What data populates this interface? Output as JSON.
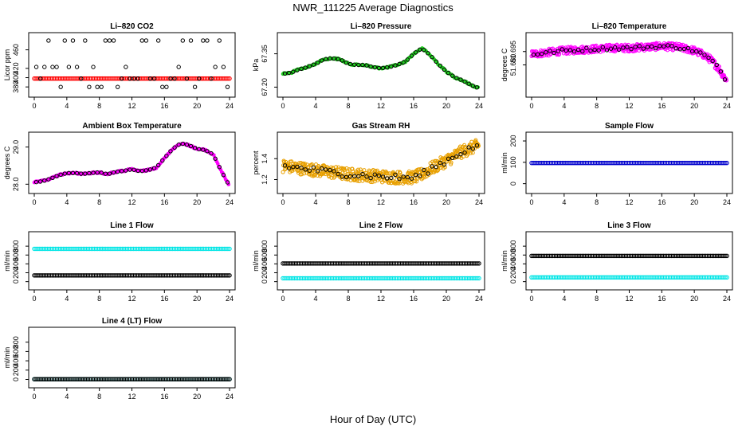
{
  "chart_data": {
    "type": "scatter",
    "title": "NWR_111225  Average Diagnostics",
    "xlabel": "Hour of Day (UTC)",
    "xlim": [
      0,
      24
    ],
    "xticks": [
      "0",
      "4",
      "8",
      "12",
      "16",
      "20",
      "24"
    ],
    "colors": {
      "red": "#ff0000",
      "green": "#22cc22",
      "magenta": "#ff00ff",
      "orange": "#e8a000",
      "blue": "#0000cc",
      "cyan": "#00e5e5",
      "black": "#000000"
    },
    "panels": [
      {
        "title": "Li–820 CO2",
        "ylabel": "Licor ppm",
        "ylim": [
          370,
          485
        ],
        "yticks": [
          "380",
          "400",
          "420",
          "460"
        ],
        "ytick_values": [
          380,
          400,
          420,
          460
        ],
        "series": [
          {
            "name": "all",
            "color": "red",
            "kind": "flat",
            "y": 398
          },
          {
            "name": "avg",
            "color": "black",
            "kind": "levels",
            "levels": [
              380,
              398,
              423,
              480
            ]
          }
        ]
      },
      {
        "title": "Li–820 Pressure",
        "ylabel": "kPa",
        "ylim": [
          67.18,
          67.42
        ],
        "yticks": [
          "67.20",
          "67.35"
        ],
        "ytick_values": [
          67.2,
          67.35
        ],
        "series": [
          {
            "name": "all",
            "color": "green",
            "kind": "curve",
            "x": [
              0,
              1,
              2,
              3,
              4,
              5,
              6,
              7,
              8,
              9,
              10,
              11,
              12,
              13,
              14,
              15,
              16,
              17,
              18,
              19,
              20,
              21,
              22,
              23,
              24
            ],
            "y": [
              67.26,
              67.265,
              67.28,
              67.29,
              67.305,
              67.325,
              67.33,
              67.325,
              67.305,
              67.3,
              67.3,
              67.29,
              67.285,
              67.29,
              67.3,
              67.315,
              67.35,
              67.375,
              67.345,
              67.305,
              67.27,
              67.245,
              67.23,
              67.21,
              67.195
            ]
          }
        ]
      },
      {
        "title": "Li–820 Temperature",
        "ylabel": "degrees C",
        "ylim": [
          51.65,
          51.71
        ],
        "yticks": [
          "51.680",
          "51.695"
        ],
        "ytick_values": [
          51.68,
          51.695
        ],
        "series": [
          {
            "name": "all",
            "color": "magenta",
            "kind": "band",
            "x": [
              0,
              2,
              4,
              6,
              8,
              10,
              12,
              14,
              16,
              18,
              19,
              20,
              21,
              22,
              23,
              24
            ],
            "y": [
              51.692,
              51.694,
              51.696,
              51.697,
              51.698,
              51.699,
              51.699,
              51.7,
              51.701,
              51.7,
              51.698,
              51.696,
              51.692,
              51.686,
              51.676,
              51.662
            ],
            "spread": 0.004
          }
        ]
      },
      {
        "title": "Ambient Box Temperature",
        "ylabel": "degrees C",
        "ylim": [
          27.9,
          29.25
        ],
        "yticks": [
          "28.0",
          "29.0"
        ],
        "ytick_values": [
          28.0,
          29.0
        ],
        "series": [
          {
            "name": "all",
            "color": "magenta",
            "kind": "curve",
            "x": [
              0,
              1,
              2,
              3,
              4,
              5,
              6,
              7,
              8,
              9,
              10,
              11,
              12,
              13,
              14,
              15,
              16,
              17,
              18,
              19,
              20,
              21,
              22,
              23,
              24
            ],
            "y": [
              28.05,
              28.08,
              28.15,
              28.24,
              28.3,
              28.3,
              28.28,
              28.3,
              28.32,
              28.27,
              28.33,
              28.36,
              28.4,
              28.35,
              28.38,
              28.45,
              28.7,
              28.95,
              29.1,
              29.05,
              28.95,
              28.92,
              28.8,
              28.35,
              27.95
            ]
          }
        ]
      },
      {
        "title": "Gas Stream RH",
        "ylabel": "percent",
        "ylim": [
          1.12,
          1.6
        ],
        "yticks": [
          "1.2",
          "1.4"
        ],
        "ytick_values": [
          1.2,
          1.4
        ],
        "series": [
          {
            "name": "all",
            "color": "orange",
            "kind": "band",
            "x": [
              0,
              2,
              4,
              6,
              8,
              10,
              12,
              14,
              16,
              17,
              18,
              20,
              22,
              24
            ],
            "y": [
              1.33,
              1.31,
              1.29,
              1.27,
              1.25,
              1.24,
              1.23,
              1.22,
              1.22,
              1.25,
              1.3,
              1.38,
              1.47,
              1.53
            ],
            "spread": 0.06
          }
        ]
      },
      {
        "title": "Sample Flow",
        "ylabel": "ml/min",
        "ylim": [
          -20,
          215
        ],
        "yticks": [
          "0",
          "100",
          "200"
        ],
        "ytick_values": [
          0,
          100,
          200
        ],
        "series": [
          {
            "name": "all",
            "color": "blue",
            "kind": "flat",
            "y": 97
          }
        ]
      },
      {
        "title": "Line 1 Flow",
        "ylabel": "ml/min",
        "ylim": [
          -60,
          1000
        ],
        "yticks": [
          "0",
          "200",
          "400",
          "600",
          "800"
        ],
        "ytick_values": [
          0,
          200,
          400,
          600,
          800
        ],
        "series": [
          {
            "name": "line1",
            "color": "cyan",
            "kind": "flat",
            "y": 740
          },
          {
            "name": "avg",
            "color": "black",
            "kind": "flat",
            "y": 140
          }
        ]
      },
      {
        "title": "Line 2 Flow",
        "ylabel": "ml/min",
        "ylim": [
          -60,
          1000
        ],
        "yticks": [
          "0",
          "200",
          "400",
          "600",
          "800"
        ],
        "ytick_values": [
          0,
          200,
          400,
          600,
          800
        ],
        "series": [
          {
            "name": "line2",
            "color": "cyan",
            "kind": "flat",
            "y": 75
          },
          {
            "name": "avg",
            "color": "black",
            "kind": "flat",
            "y": 410
          }
        ]
      },
      {
        "title": "Line 3 Flow",
        "ylabel": "ml/min",
        "ylim": [
          -60,
          1000
        ],
        "yticks": [
          "0",
          "200",
          "400",
          "600",
          "800"
        ],
        "ytick_values": [
          0,
          200,
          400,
          600,
          800
        ],
        "series": [
          {
            "name": "line3",
            "color": "cyan",
            "kind": "flat",
            "y": 95
          },
          {
            "name": "avg",
            "color": "black",
            "kind": "flat",
            "y": 580
          }
        ]
      },
      {
        "title": "Line 4 (LT) Flow",
        "ylabel": "ml/min",
        "ylim": [
          -60,
          1000
        ],
        "yticks": [
          "0",
          "200",
          "400",
          "600",
          "800"
        ],
        "ytick_values": [
          0,
          200,
          400,
          600,
          800
        ],
        "series": [
          {
            "name": "line4",
            "color": "cyan",
            "kind": "flat",
            "y": 5
          },
          {
            "name": "avg",
            "color": "black",
            "kind": "flat",
            "y": 5
          }
        ]
      }
    ]
  }
}
